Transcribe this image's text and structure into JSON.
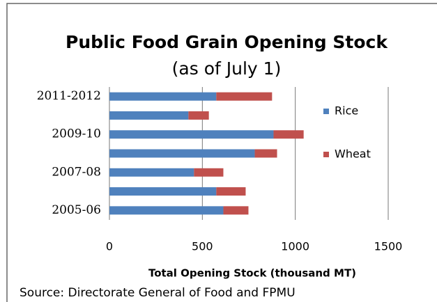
{
  "chart_data": {
    "type": "bar",
    "orientation": "horizontal",
    "stacked": true,
    "title": [
      "Public Food Grain Opening Stock",
      "(as of July 1)"
    ],
    "categories": [
      "2005-06",
      null,
      "2007-08",
      null,
      "2009-10",
      null,
      "2011-2012"
    ],
    "series": [
      {
        "name": "Rice",
        "color": "#4f81bd",
        "values": [
          613,
          575,
          455,
          782,
          883,
          425,
          575
        ]
      },
      {
        "name": "Wheat",
        "color": "#c0504d",
        "values": [
          135,
          158,
          158,
          120,
          162,
          110,
          300
        ]
      }
    ],
    "xlim": [
      0,
      1500
    ],
    "xticks": [
      0,
      500,
      1000,
      1500
    ],
    "xlabel": "Total Opening Stock (thousand MT)",
    "grid": true,
    "legend": "right",
    "source": "Source: Directorate General of Food and FPMU"
  }
}
